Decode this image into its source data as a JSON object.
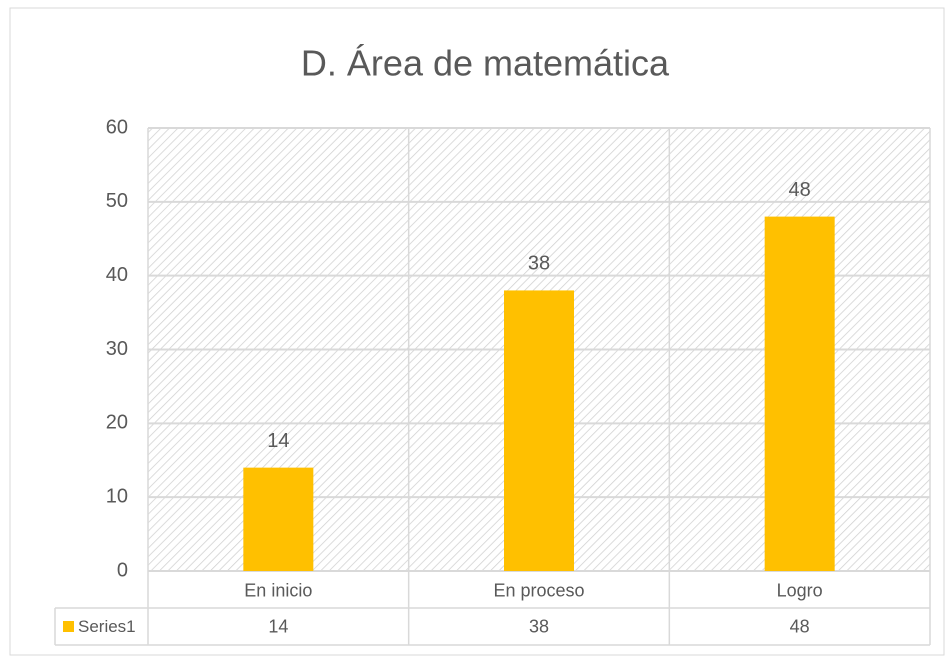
{
  "chart_data": {
    "type": "bar",
    "title": "D. Área de matemática",
    "categories": [
      "En inicio",
      "En proceso",
      "Logro"
    ],
    "series": [
      {
        "name": "Series1",
        "color": "#ffc000",
        "values": [
          14,
          38,
          48
        ]
      }
    ],
    "ylim": [
      0,
      60
    ],
    "yticks": [
      0,
      10,
      20,
      30,
      40,
      50,
      60
    ],
    "grid": true
  }
}
